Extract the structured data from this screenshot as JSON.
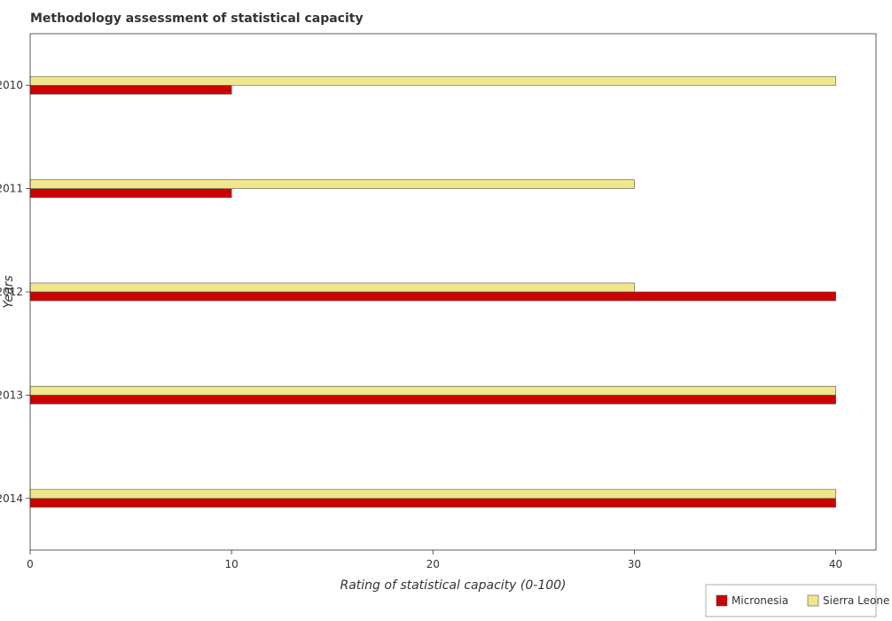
{
  "chart_data": {
    "type": "bar",
    "orientation": "horizontal",
    "title": "Methodology assessment of statistical capacity",
    "xlabel": "Rating of statistical capacity (0-100)",
    "ylabel": "Years",
    "categories": [
      "2010",
      "2011",
      "2012",
      "2013",
      "2014"
    ],
    "series": [
      {
        "name": "Micronesia",
        "color": "#cc0000",
        "values": [
          10,
          10,
          40,
          40,
          40
        ]
      },
      {
        "name": "Sierra Leone",
        "color": "#f0e68c",
        "values": [
          40,
          30,
          30,
          40,
          40
        ]
      }
    ],
    "xlim": [
      0,
      42
    ],
    "xticks": [
      0,
      10,
      20,
      30,
      40
    ],
    "xtick_labels": [
      "0",
      "10",
      "20",
      "30",
      "40"
    ],
    "grid": false,
    "legend_position": "bottom-right"
  }
}
